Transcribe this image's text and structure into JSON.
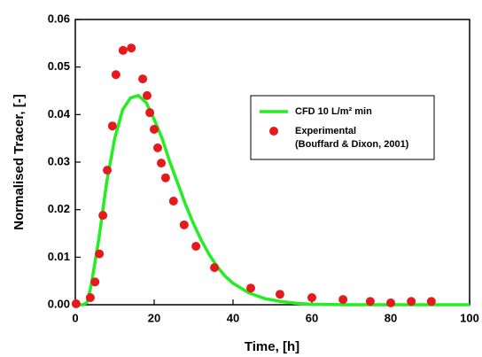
{
  "chart_data": {
    "type": "line-scatter",
    "xlabel": "Time, [h]",
    "ylabel": "Normalised Tracer, [-]",
    "xlim": [
      0,
      100
    ],
    "xticks": [
      0,
      20,
      40,
      60,
      80,
      100
    ],
    "ylim": [
      0,
      0.06
    ],
    "yticks": [
      {
        "value": 0,
        "label": "0.00"
      },
      {
        "value": 0.01,
        "label": "0.01"
      },
      {
        "value": 0.02,
        "label": "0.02"
      },
      {
        "value": 0.03,
        "label": "0.03"
      },
      {
        "value": 0.04,
        "label": "0.04"
      },
      {
        "value": 0.05,
        "label": "0.05"
      },
      {
        "value": 0.06,
        "label": "0.06"
      }
    ],
    "grid": false,
    "legend": "upper-right",
    "series": [
      {
        "name": "CFD 10 L/m² min",
        "kind": "line",
        "color": "#22ee22",
        "x": [
          0,
          2,
          3,
          4,
          6,
          8,
          10,
          12,
          14,
          16,
          18,
          20,
          22,
          24,
          26,
          28,
          30,
          32,
          34,
          36,
          38,
          40,
          44,
          48,
          52,
          56,
          60,
          70,
          80,
          90,
          100
        ],
        "values": [
          0,
          0,
          0.0005,
          0.004,
          0.014,
          0.026,
          0.035,
          0.041,
          0.0435,
          0.044,
          0.0425,
          0.039,
          0.035,
          0.03,
          0.0255,
          0.021,
          0.017,
          0.0135,
          0.0105,
          0.008,
          0.006,
          0.0045,
          0.0025,
          0.0013,
          0.0007,
          0.0003,
          0.0001,
          0,
          0,
          0,
          0
        ]
      },
      {
        "name": "Experimental",
        "source": "(Bouffard & Dixon, 2001)",
        "kind": "scatter",
        "color": "#e41a1c",
        "x": [
          0.2,
          3.8,
          5,
          6.1,
          7,
          8.1,
          9.4,
          10.3,
          12.1,
          14.2,
          17.1,
          18.2,
          18.9,
          20,
          20.9,
          21.8,
          22.9,
          24.9,
          27.6,
          30.6,
          35.3,
          44.5,
          51.9,
          60,
          67.9,
          74.8,
          80,
          85.2,
          90.3
        ],
        "values": [
          0.0002,
          0.0015,
          0.0048,
          0.0107,
          0.0188,
          0.0283,
          0.0376,
          0.0484,
          0.0535,
          0.054,
          0.0475,
          0.044,
          0.0404,
          0.0369,
          0.033,
          0.0298,
          0.0267,
          0.0218,
          0.0168,
          0.0123,
          0.0078,
          0.0035,
          0.0022,
          0.0015,
          0.0011,
          0.0007,
          0.0004,
          0.0007,
          0.0007
        ]
      }
    ]
  }
}
